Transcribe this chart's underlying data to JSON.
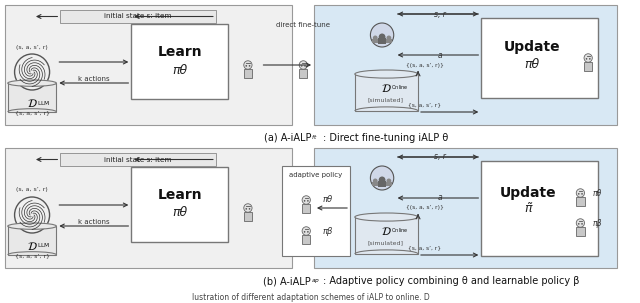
{
  "fig_width": 6.4,
  "fig_height": 3.03,
  "dpi": 100,
  "bg_color": "#ffffff",
  "panel_bg_left": "#f0f0f0",
  "panel_bg_right": "#d8e8f4",
  "border_color": "#888888",
  "caption_a_text": "(a) A-iALP",
  "caption_a_sub": "ft",
  "caption_a_rest": ": Direct fine-tuning iALP θ",
  "caption_b_text": "(b) A-iALP",
  "caption_b_sub": "ap",
  "caption_b_rest": ": Adaptive policy combining θ and learnable policy β",
  "caption_bottom": "lustration of different adaptation schemes of iALP to online. D",
  "state_label": "initial state s: item",
  "k_actions": "k actions",
  "transitions_sa": "(s, a, s’, r)",
  "transitions_set": "{s, a, s’, r}",
  "transitions_set2": "{(s, a, s’, r)}",
  "direct_finetune": "direct fine-tune",
  "adaptive_policy": "adaptive policy",
  "learn_label": "Learn",
  "update_label": "Update",
  "pi_theta": "πθ",
  "pi_tilde": "π̃",
  "pi_beta": "πβ",
  "pi_theta_sym": "πθ",
  "s_r": "s, r",
  "a_sym": "a",
  "donline_sub": "[simulated]",
  "arrow_color": "#333333"
}
